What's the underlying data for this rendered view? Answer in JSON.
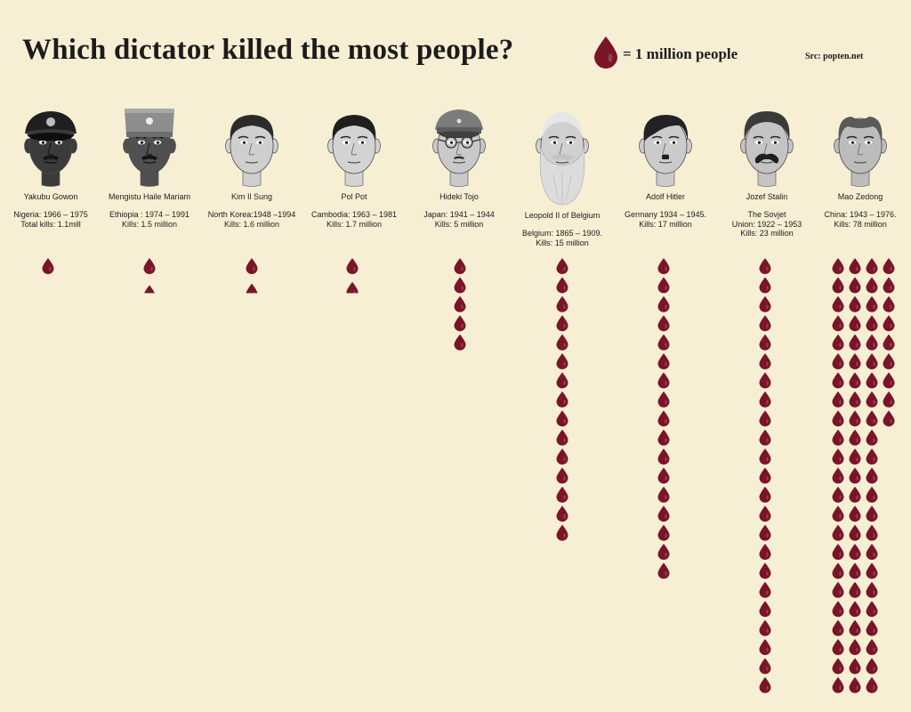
{
  "colors": {
    "background": "#f7efd4",
    "drop": "#7a1528",
    "text": "#1c1c1c"
  },
  "chart_data": {
    "type": "bar",
    "title": "Which dictator killed the most people?",
    "legend": "= 1 million people",
    "legend_icon": "blood-drop-icon",
    "source": "Src: popten.net",
    "dictators": [
      {
        "name": "Yakubu Gowon",
        "period": "Nigeria: 1966 – 1975",
        "kills_label": "Total kills: 1.1mill",
        "value": 1.1
      },
      {
        "name": "Mengistu Haile Mariam",
        "period": "Ethiopia : 1974 – 1991",
        "kills_label": "Kills: 1.5 million",
        "value": 1.5
      },
      {
        "name": "Kim Il Sung",
        "period": "North Korea:1948 –1994",
        "kills_label": "Kills: 1.6 million",
        "value": 1.6
      },
      {
        "name": "Pol Pot",
        "period": "Cambodia: 1963 – 1981",
        "kills_label": "Kills: 1.7 million",
        "value": 1.7
      },
      {
        "name": "Hideki Tojo",
        "period": "Japan: 1941 – 1944",
        "kills_label": "Kills: 5 million",
        "value": 5
      },
      {
        "name": "Leopold II of Belgium",
        "period": "Belgium: 1865 – 1909.",
        "kills_label": "Kills: 15 million",
        "value": 15
      },
      {
        "name": "Adolf Hitler",
        "period": "Germany 1934 – 1945.",
        "kills_label": "Kills: 17 million",
        "value": 17
      },
      {
        "name": "Jozef Stalin",
        "period": "The Sovjet\nUnion: 1922 – 1953",
        "kills_label": "Kills: 23 million",
        "value": 23
      },
      {
        "name": "Mao Zedong",
        "period": "China: 1943 – 1976.",
        "kills_label": "Kills: 78 million",
        "value": 78
      }
    ]
  }
}
